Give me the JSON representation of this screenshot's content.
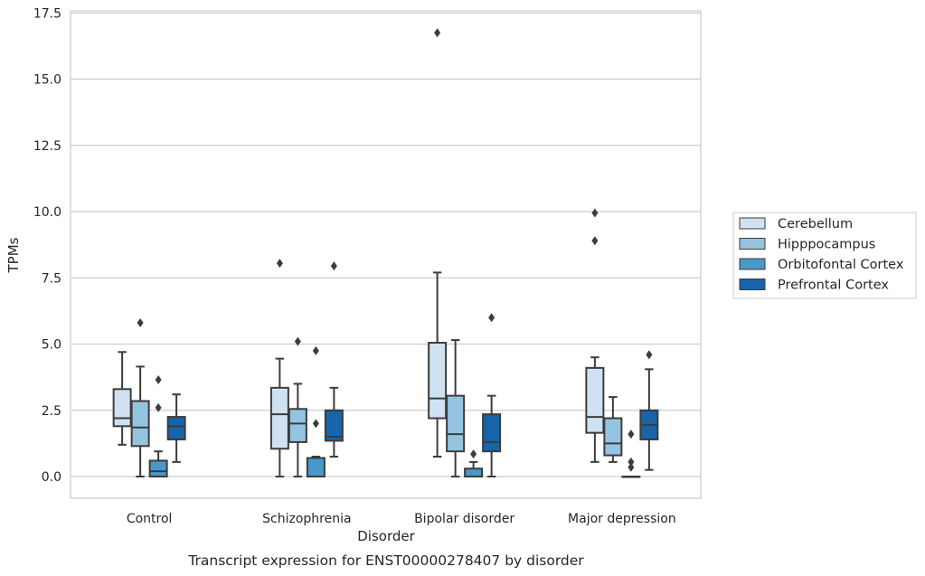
{
  "chart_data": {
    "type": "box",
    "title": "",
    "caption": "Transcript expression for ENST00000278407 by disorder",
    "xlabel": "Disorder",
    "ylabel": "TPMs",
    "ylim": [
      -0.75,
      17.6
    ],
    "yticks": [
      0.0,
      2.5,
      5.0,
      7.5,
      10.0,
      12.5,
      15.0,
      17.5
    ],
    "ytick_labels": [
      "0.0",
      "2.5",
      "5.0",
      "7.5",
      "10.0",
      "12.5",
      "15.0",
      "17.5"
    ],
    "grid": "horizontal",
    "legend_position": "right",
    "categories": [
      "Control",
      "Schizophrenia",
      "Bipolar disorder",
      "Major depression"
    ],
    "series": [
      {
        "name": "Cerebellum",
        "color": "#d0e1f2",
        "boxes": [
          {
            "whisker_low": 1.2,
            "q1": 1.9,
            "median": 2.2,
            "q3": 3.3,
            "whisker_high": 4.7,
            "outliers": []
          },
          {
            "whisker_low": 0.0,
            "q1": 1.05,
            "median": 2.35,
            "q3": 3.35,
            "whisker_high": 4.45,
            "outliers": [
              8.05
            ]
          },
          {
            "whisker_low": 0.75,
            "q1": 2.2,
            "median": 2.95,
            "q3": 5.05,
            "whisker_high": 7.7,
            "outliers": [
              16.75
            ]
          },
          {
            "whisker_low": 0.55,
            "q1": 1.65,
            "median": 2.25,
            "q3": 4.1,
            "whisker_high": 4.5,
            "outliers": [
              8.9,
              9.95
            ]
          }
        ]
      },
      {
        "name": "Hipppocampus",
        "color": "#94c4df",
        "boxes": [
          {
            "whisker_low": 0.0,
            "q1": 1.15,
            "median": 1.85,
            "q3": 2.85,
            "whisker_high": 4.15,
            "outliers": [
              5.8
            ]
          },
          {
            "whisker_low": 0.0,
            "q1": 1.3,
            "median": 2.0,
            "q3": 2.55,
            "whisker_high": 3.5,
            "outliers": [
              5.1
            ]
          },
          {
            "whisker_low": 0.0,
            "q1": 0.95,
            "median": 1.6,
            "q3": 3.05,
            "whisker_high": 5.15,
            "outliers": []
          },
          {
            "whisker_low": 0.55,
            "q1": 0.8,
            "median": 1.25,
            "q3": 2.2,
            "whisker_high": 3.0,
            "outliers": []
          }
        ]
      },
      {
        "name": "Orbitofontal Cortex",
        "color": "#4a98c9",
        "boxes": [
          {
            "whisker_low": 0.0,
            "q1": 0.0,
            "median": 0.2,
            "q3": 0.6,
            "whisker_high": 0.95,
            "outliers": [
              2.6,
              3.65
            ]
          },
          {
            "whisker_low": 0.0,
            "q1": 0.0,
            "median": 0.0,
            "q3": 0.7,
            "whisker_high": 0.75,
            "outliers": [
              2.0,
              4.75
            ]
          },
          {
            "whisker_low": 0.0,
            "q1": 0.0,
            "median": 0.0,
            "q3": 0.3,
            "whisker_high": 0.55,
            "outliers": [
              0.85
            ]
          },
          {
            "whisker_low": 0.0,
            "q1": 0.0,
            "median": 0.0,
            "q3": 0.0,
            "whisker_high": 0.0,
            "outliers": [
              0.35,
              0.55,
              1.6
            ]
          }
        ]
      },
      {
        "name": "Prefrontal Cortex",
        "color": "#1764ab",
        "boxes": [
          {
            "whisker_low": 0.55,
            "q1": 1.4,
            "median": 1.9,
            "q3": 2.25,
            "whisker_high": 3.1,
            "outliers": []
          },
          {
            "whisker_low": 0.75,
            "q1": 1.35,
            "median": 1.5,
            "q3": 2.5,
            "whisker_high": 3.35,
            "outliers": [
              7.95
            ]
          },
          {
            "whisker_low": 0.0,
            "q1": 0.95,
            "median": 1.3,
            "q3": 2.35,
            "whisker_high": 3.05,
            "outliers": [
              6.0
            ]
          },
          {
            "whisker_low": 0.25,
            "q1": 1.4,
            "median": 1.95,
            "q3": 2.5,
            "whisker_high": 4.05,
            "outliers": [
              4.6
            ]
          }
        ]
      }
    ]
  }
}
